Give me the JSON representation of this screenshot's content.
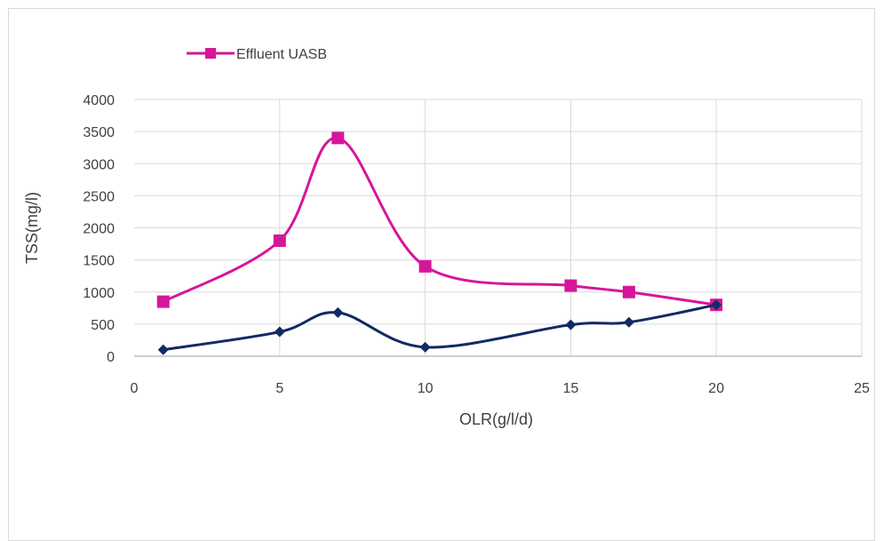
{
  "chart_data": {
    "type": "line",
    "title": "",
    "xlabel": "OLR(g/l/d)",
    "ylabel": "TSS(mg/l)",
    "xlim": [
      0,
      25
    ],
    "ylim": [
      0,
      4000
    ],
    "xticks": [
      0,
      5,
      10,
      15,
      20,
      25
    ],
    "yticks": [
      0,
      500,
      1000,
      1500,
      2000,
      2500,
      3000,
      3500,
      4000
    ],
    "grid": true,
    "legend_position": "top",
    "series": [
      {
        "name": "Effluent UASB",
        "color": "#d6169a",
        "marker": "square",
        "smooth": true,
        "points": [
          {
            "x": 1,
            "y": 850
          },
          {
            "x": 5,
            "y": 1800
          },
          {
            "x": 7,
            "y": 3400
          },
          {
            "x": 10,
            "y": 1400
          },
          {
            "x": 15,
            "y": 1100
          },
          {
            "x": 17,
            "y": 1000
          },
          {
            "x": 20,
            "y": 800
          }
        ]
      },
      {
        "color": "#102b63",
        "marker": "diamond",
        "smooth": true,
        "points": [
          {
            "x": 1,
            "y": 100
          },
          {
            "x": 5,
            "y": 380
          },
          {
            "x": 7,
            "y": 680
          },
          {
            "x": 10,
            "y": 140
          },
          {
            "x": 15,
            "y": 490
          },
          {
            "x": 17,
            "y": 530
          },
          {
            "x": 20,
            "y": 800
          }
        ]
      }
    ]
  }
}
